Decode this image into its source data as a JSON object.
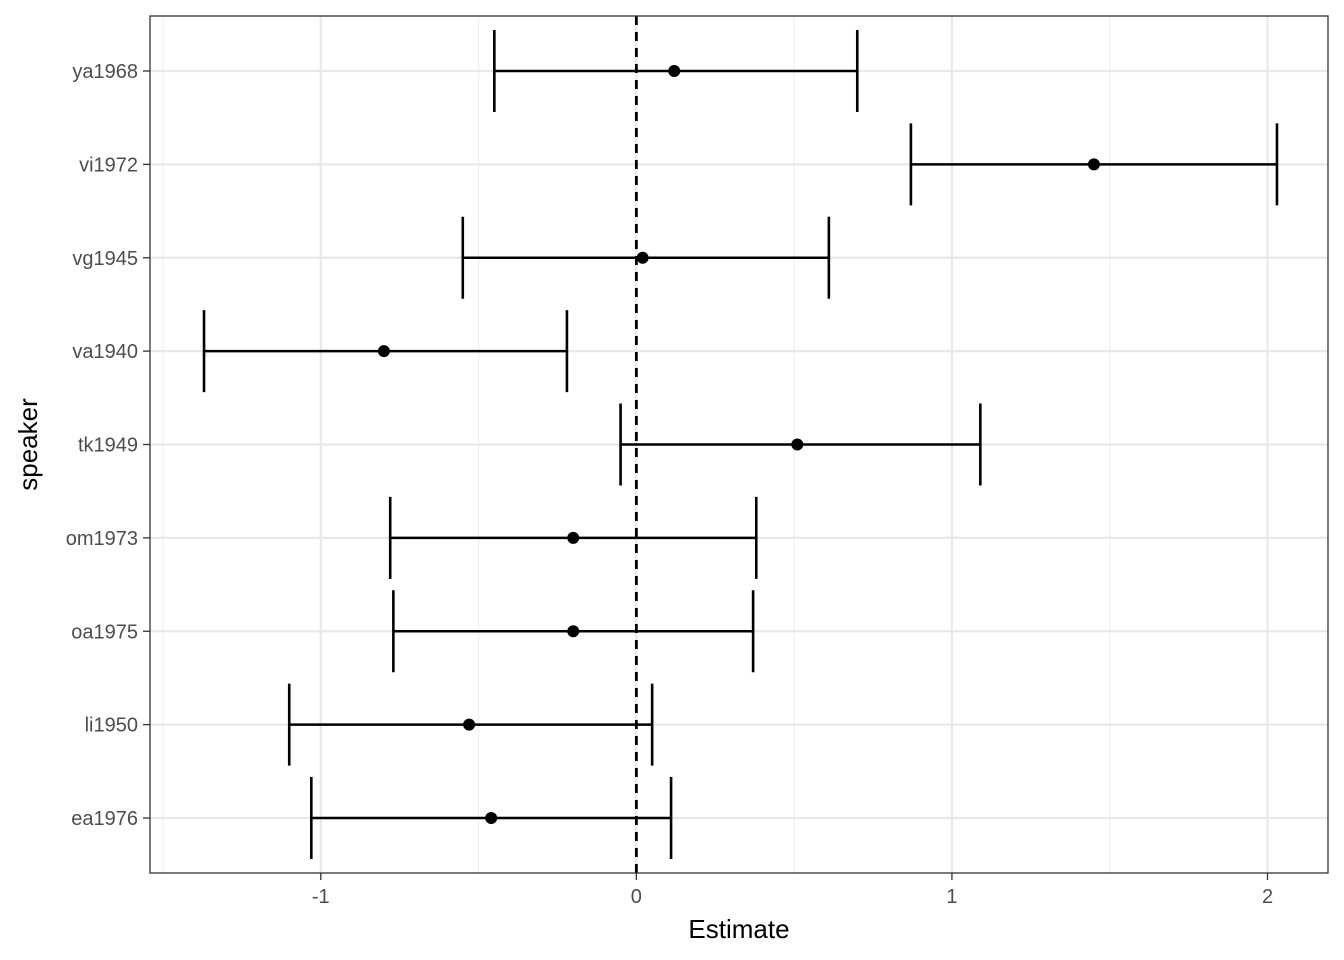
{
  "chart_data": {
    "type": "forest",
    "xlabel": "Estimate",
    "ylabel": "speaker",
    "xlim": [
      -1.5,
      2.2
    ],
    "x_ticks": [
      -1,
      0,
      1,
      2
    ],
    "x_tick_labels": [
      "-1",
      "0",
      "1",
      "2"
    ],
    "minor_x_ticks": [
      -1.5,
      -0.5,
      0.5,
      1.5
    ],
    "reference_line": 0,
    "grid": true,
    "categories": [
      "ea1976",
      "li1950",
      "oa1975",
      "om1973",
      "tk1949",
      "va1940",
      "vg1945",
      "vi1972",
      "ya1968"
    ],
    "series": [
      {
        "estimate": [
          -0.46,
          -0.53,
          -0.2,
          -0.2,
          0.51,
          -0.8,
          0.02,
          1.45,
          0.12
        ],
        "lower": [
          -1.03,
          -1.1,
          -0.77,
          -0.78,
          -0.05,
          -1.37,
          -0.55,
          0.87,
          -0.45
        ],
        "upper": [
          0.11,
          0.05,
          0.37,
          0.38,
          1.09,
          -0.22,
          0.61,
          2.03,
          0.7
        ]
      }
    ]
  }
}
